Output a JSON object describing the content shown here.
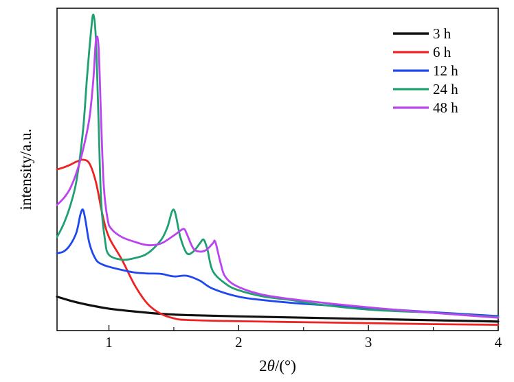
{
  "chart_data": {
    "type": "line",
    "title": "",
    "xlabel": "2θ/(°)",
    "xlabel_prefix": "2",
    "xlabel_symbol": "θ",
    "xlabel_suffix": "/(°)",
    "ylabel": "intensity/a.u.",
    "xlim": [
      0.6,
      4.0
    ],
    "ylim": [
      0,
      100
    ],
    "y_ticks_shown": false,
    "grid": false,
    "legend_position": "top-right",
    "x_ticks": [
      1,
      2,
      3,
      4
    ],
    "x_tick_labels": [
      "1",
      "2",
      "3",
      "4"
    ],
    "series": [
      {
        "name": "3 h",
        "color": "#111111",
        "x": [
          0.6,
          0.7,
          0.8,
          0.9,
          1.0,
          1.2,
          1.4,
          1.6,
          2.0,
          2.5,
          3.0,
          3.5,
          4.0
        ],
        "y": [
          10.5,
          9.3,
          8.3,
          7.5,
          6.8,
          5.9,
          5.2,
          4.8,
          4.4,
          4.0,
          3.6,
          3.2,
          2.8
        ]
      },
      {
        "name": "6 h",
        "color": "#ee2222",
        "x": [
          0.6,
          0.65,
          0.7,
          0.75,
          0.8,
          0.85,
          0.9,
          0.95,
          1.0,
          1.1,
          1.2,
          1.3,
          1.4,
          1.5,
          1.6,
          2.0,
          2.5,
          3.0,
          3.5,
          4.0
        ],
        "y": [
          50.0,
          50.6,
          51.4,
          52.4,
          53.0,
          51.8,
          46.0,
          36.0,
          29.0,
          22.0,
          14.0,
          8.2,
          5.2,
          3.8,
          3.3,
          2.9,
          2.6,
          2.3,
          2.0,
          1.8
        ]
      },
      {
        "name": "12 h",
        "color": "#1f48f0",
        "x": [
          0.6,
          0.65,
          0.7,
          0.75,
          0.78,
          0.8,
          0.82,
          0.85,
          0.9,
          0.95,
          1.0,
          1.1,
          1.2,
          1.3,
          1.4,
          1.5,
          1.6,
          1.7,
          1.8,
          2.0,
          2.2,
          2.5,
          3.0,
          3.5,
          4.0
        ],
        "y": [
          24.0,
          24.5,
          26.5,
          30.5,
          36.0,
          37.5,
          34.0,
          27.0,
          22.0,
          20.5,
          19.8,
          18.8,
          18.0,
          17.7,
          17.6,
          16.8,
          17.0,
          15.5,
          13.0,
          10.5,
          9.4,
          8.3,
          7.0,
          5.7,
          4.5
        ]
      },
      {
        "name": "24 h",
        "color": "#20a070",
        "x": [
          0.6,
          0.65,
          0.7,
          0.75,
          0.8,
          0.83,
          0.86,
          0.88,
          0.9,
          0.92,
          0.94,
          0.97,
          1.0,
          1.1,
          1.2,
          1.3,
          1.4,
          1.45,
          1.5,
          1.55,
          1.6,
          1.65,
          1.7,
          1.73,
          1.76,
          1.8,
          1.9,
          2.0,
          2.2,
          2.4,
          2.6,
          3.0,
          3.5,
          4.0
        ],
        "y": [
          29.0,
          33.0,
          38.5,
          46.5,
          62.0,
          78.0,
          92.0,
          98.0,
          90.0,
          65.0,
          40.0,
          28.0,
          23.5,
          22.0,
          22.5,
          24.0,
          28.0,
          32.0,
          37.5,
          29.0,
          24.0,
          24.5,
          27.0,
          28.2,
          25.0,
          18.5,
          14.5,
          12.5,
          10.5,
          9.5,
          8.2,
          6.5,
          5.5,
          4.2
        ]
      },
      {
        "name": "48 h",
        "color": "#bb44f0",
        "x": [
          0.6,
          0.65,
          0.7,
          0.75,
          0.8,
          0.85,
          0.88,
          0.9,
          0.92,
          0.94,
          0.96,
          0.99,
          1.02,
          1.1,
          1.2,
          1.3,
          1.4,
          1.5,
          1.55,
          1.58,
          1.6,
          1.65,
          1.7,
          1.75,
          1.8,
          1.82,
          1.86,
          1.9,
          2.0,
          2.2,
          2.5,
          3.0,
          3.5,
          4.0
        ],
        "y": [
          39.0,
          41.0,
          44.0,
          49.0,
          56.0,
          66.0,
          78.0,
          90.0,
          88.0,
          65.0,
          45.0,
          34.5,
          31.5,
          29.0,
          27.5,
          26.5,
          27.0,
          29.5,
          31.0,
          31.5,
          30.0,
          25.5,
          24.5,
          25.0,
          27.0,
          27.5,
          21.0,
          16.5,
          13.5,
          11.0,
          9.3,
          7.2,
          5.5,
          4.0
        ]
      }
    ]
  }
}
